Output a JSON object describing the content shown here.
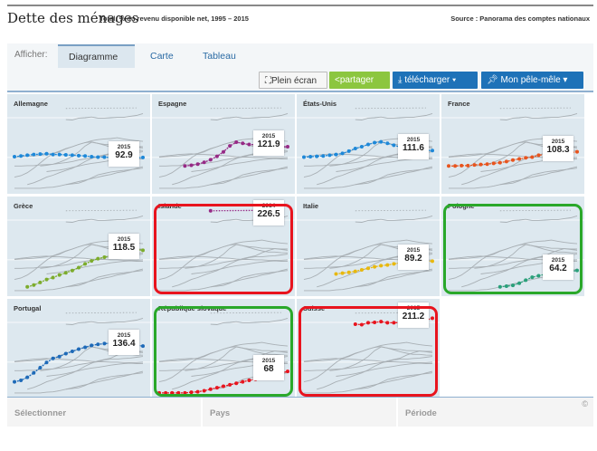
{
  "header": {
    "title": "Dette des ménages",
    "subtitle": "Total, % du revenu disponible net, 1995 – 2015",
    "source": "Source : Panorama des comptes nationaux"
  },
  "toolbar": {
    "afficher": "Afficher:",
    "tabs": [
      "Diagramme",
      "Carte",
      "Tableau"
    ],
    "active_tab": "Diagramme",
    "buttons": {
      "fullscreen": "Plein écran",
      "share": "partager",
      "download": "télécharger ▾",
      "pin": "Mon pêle-mêle ▾"
    }
  },
  "years": [
    1995,
    2015
  ],
  "countries": [
    {
      "name": "Allemagne",
      "color": "#1e88d8",
      "label_year": "2015",
      "label_value": "92.9",
      "highlight": null,
      "series": [
        95,
        97,
        99,
        101,
        102,
        103,
        101,
        101,
        100,
        99,
        98,
        97,
        95,
        94,
        94,
        93,
        93,
        92,
        92,
        92,
        92.9
      ]
    },
    {
      "name": "Espagne",
      "color": "#962a86",
      "label_year": "2015",
      "label_value": "121.9",
      "highlight": null,
      "series": [
        null,
        null,
        null,
        null,
        70,
        72,
        75,
        80,
        87,
        96,
        108,
        124,
        134,
        131,
        128,
        127,
        124,
        124,
        123,
        122,
        121.9
      ]
    },
    {
      "name": "États-Unis",
      "color": "#1e88d8",
      "label_year": "2015",
      "label_value": "111.6",
      "highlight": null,
      "series": [
        94,
        95,
        96,
        97,
        99,
        101,
        104,
        110,
        117,
        122,
        128,
        133,
        135,
        131,
        126,
        121,
        117,
        114,
        114,
        112,
        111.6
      ]
    },
    {
      "name": "France",
      "color": "#e8541e",
      "label_year": "2015",
      "label_value": "108.3",
      "highlight": null,
      "series": [
        70,
        70,
        71,
        71,
        73,
        74,
        75,
        77,
        79,
        82,
        86,
        89,
        92,
        94,
        99,
        101,
        101,
        103,
        104,
        106,
        108.3
      ]
    },
    {
      "name": "Grèce",
      "color": "#7cac2c",
      "label_year": "2015",
      "label_value": "118.5",
      "highlight": null,
      "series": [
        null,
        null,
        20,
        25,
        32,
        40,
        45,
        52,
        58,
        64,
        72,
        82,
        90,
        96,
        100,
        104,
        112,
        118,
        123,
        121,
        118.5
      ]
    },
    {
      "name": "Islande",
      "color": "#962a86",
      "label_year": "2014",
      "label_value": "226.5",
      "highlight": "#e8141e",
      "series": [
        null,
        null,
        null,
        null,
        null,
        null,
        null,
        null,
        225,
        null,
        null,
        null,
        null,
        null,
        null,
        null,
        null,
        null,
        null,
        226.5,
        null
      ]
    },
    {
      "name": "Italie",
      "color": "#e8b80e",
      "label_year": "2015",
      "label_value": "89.2",
      "highlight": null,
      "series": [
        null,
        null,
        null,
        null,
        null,
        55,
        57,
        59,
        62,
        66,
        70,
        74,
        77,
        79,
        82,
        85,
        87,
        89,
        90,
        89,
        89.2
      ]
    },
    {
      "name": "Pologne",
      "color": "#2aa07a",
      "label_year": "2015",
      "label_value": "64.2",
      "highlight": "#2aa82a",
      "series": [
        null,
        null,
        null,
        null,
        null,
        null,
        null,
        null,
        20,
        22,
        24,
        30,
        38,
        46,
        50,
        54,
        56,
        58,
        60,
        62,
        64.2
      ]
    },
    {
      "name": "Portugal",
      "color": "#1e6ab8",
      "label_year": "2015",
      "label_value": "136.4",
      "highlight": null,
      "series": [
        40,
        44,
        52,
        64,
        78,
        92,
        103,
        108,
        116,
        122,
        128,
        133,
        138,
        141,
        143,
        144,
        146,
        143,
        140,
        138,
        136.4
      ]
    },
    {
      "name": "République slovaque",
      "color": "#e8141e",
      "label_year": "2015",
      "label_value": "68",
      "highlight": "#2aa82a",
      "series": [
        10,
        10,
        10,
        10,
        10,
        12,
        13,
        16,
        20,
        24,
        28,
        32,
        36,
        40,
        44,
        47,
        52,
        55,
        59,
        64,
        68
      ]
    },
    {
      "name": "Suisse",
      "color": "#e8141e",
      "label_year": "2015",
      "label_value": "211.2",
      "highlight": "#e8141e",
      "series": [
        null,
        null,
        null,
        null,
        null,
        null,
        null,
        null,
        195,
        194,
        199,
        200,
        202,
        199,
        199,
        200,
        201,
        201,
        204,
        206,
        211.2
      ]
    }
  ],
  "footer": {
    "select": "Sélectionner",
    "country": "Pays",
    "period": "Période",
    "copyright": "©"
  }
}
